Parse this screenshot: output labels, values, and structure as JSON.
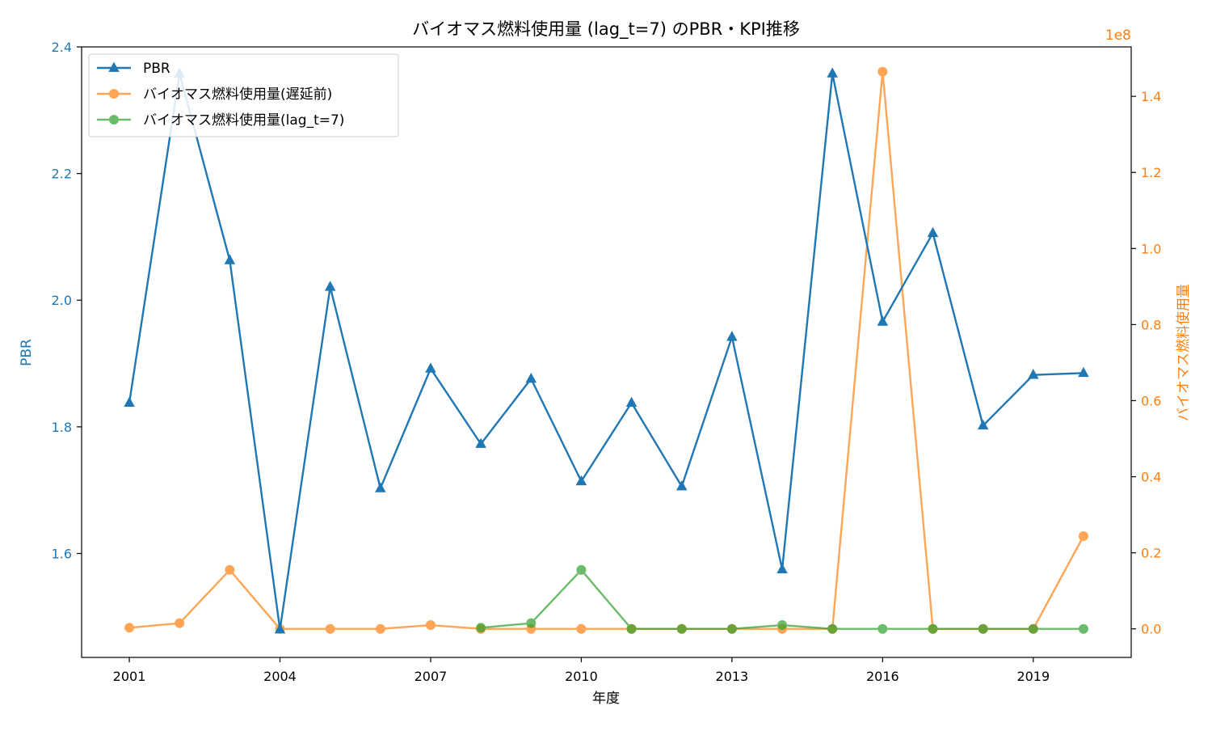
{
  "chart_data": {
    "type": "line",
    "title": "バイオマス燃料使用量 (lag_t=7) のPBR・KPI推移",
    "xlabel": "年度",
    "ylabel_left": "PBR",
    "ylabel_right": "バイオマス燃料使用量",
    "right_axis_multiplier": "1e8",
    "x": [
      2001,
      2002,
      2003,
      2004,
      2005,
      2006,
      2007,
      2008,
      2009,
      2010,
      2011,
      2012,
      2013,
      2014,
      2015,
      2016,
      2017,
      2018,
      2019,
      2020
    ],
    "x_ticks": [
      2001,
      2004,
      2007,
      2010,
      2013,
      2016,
      2019
    ],
    "y_left_ticks": [
      1.6,
      1.8,
      2.0,
      2.2,
      2.4
    ],
    "y_left_lim": [
      1.4359,
      2.4
    ],
    "y_right_ticks": [
      0.0,
      0.2,
      0.4,
      0.6,
      0.8,
      1.0,
      1.2,
      1.4
    ],
    "y_right_lim": [
      -0.075,
      1.53
    ],
    "legend_position": "upper-left",
    "grid": false,
    "colors": {
      "pbr": "#1f77b4",
      "raw": "#ff7f0e",
      "lagged": "#2ca02c"
    },
    "series": [
      {
        "name": "PBR",
        "axis": "left",
        "marker": "triangle",
        "values": [
          1.838,
          2.358,
          2.063,
          1.48,
          2.021,
          1.703,
          1.892,
          1.773,
          1.876,
          1.714,
          1.838,
          1.706,
          1.942,
          1.575,
          2.358,
          1.966,
          2.106,
          1.802,
          1.882,
          1.885
        ]
      },
      {
        "name": "バイオマス燃料使用量(遅延前)",
        "axis": "right",
        "marker": "circle",
        "values": [
          0.003,
          0.015,
          0.155,
          0.0,
          0.0,
          0.0,
          0.01,
          0.0,
          0.0,
          0.0,
          0.0,
          0.0,
          0.0,
          0.0,
          0.0,
          1.465,
          0.0,
          0.0,
          0.0,
          0.244
        ]
      },
      {
        "name": "バイオマス燃料使用量(lag_t=7)",
        "axis": "right",
        "marker": "circle",
        "values": [
          null,
          null,
          null,
          null,
          null,
          null,
          null,
          0.003,
          0.015,
          0.155,
          0.0,
          0.0,
          0.0,
          0.01,
          0.0,
          0.0,
          0.0,
          0.0,
          0.0,
          0.0
        ]
      }
    ]
  }
}
